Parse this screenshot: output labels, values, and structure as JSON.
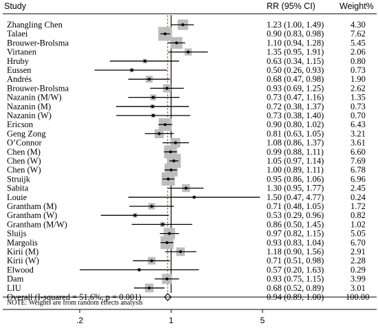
{
  "headers": {
    "study": "Study",
    "rr": "RR (95% CI)",
    "weight": "Weight%"
  },
  "chart_data": {
    "type": "forest",
    "x_scale": "log",
    "x_ticks": [
      {
        "value": 0.2,
        "label": ".2"
      },
      {
        "value": 1,
        "label": "1"
      },
      {
        "value": 5,
        "label": "5"
      }
    ],
    "overall_line_x": 0.94,
    "null_line_x": 1,
    "studies": [
      {
        "name": "Zhangling Chen",
        "rr": 1.23,
        "lo": 1.0,
        "hi": 1.49,
        "ci_text": "1.23 (1.00, 1.49)",
        "weight": "4.30"
      },
      {
        "name": "Talaei",
        "rr": 0.9,
        "lo": 0.83,
        "hi": 0.98,
        "ci_text": "0.90 (0.83, 0.98)",
        "weight": "7.62"
      },
      {
        "name": "Brouwer-Brolsma",
        "rr": 1.1,
        "lo": 0.94,
        "hi": 1.28,
        "ci_text": "1.10 (0.94, 1.28)",
        "weight": "5.45"
      },
      {
        "name": "Virtanen",
        "rr": 1.35,
        "lo": 0.95,
        "hi": 1.91,
        "ci_text": "1.35 (0.95, 1.91)",
        "weight": "2.06"
      },
      {
        "name": "Hruby",
        "rr": 0.63,
        "lo": 0.34,
        "hi": 1.15,
        "ci_text": "0.63 (0.34, 1.15)",
        "weight": "0.80"
      },
      {
        "name": "Eussen",
        "rr": 0.5,
        "lo": 0.26,
        "hi": 0.93,
        "ci_text": "0.50 (0.26, 0.93)",
        "weight": "0.73"
      },
      {
        "name": "Andrés",
        "rr": 0.68,
        "lo": 0.47,
        "hi": 0.98,
        "ci_text": "0.68 (0.47, 0.98)",
        "weight": "1.90"
      },
      {
        "name": "Brouwer-Brolsma",
        "rr": 0.93,
        "lo": 0.69,
        "hi": 1.25,
        "ci_text": "0.93 (0.69, 1.25)",
        "weight": "2.62"
      },
      {
        "name": "Nazanin (M/W)",
        "rr": 0.73,
        "lo": 0.47,
        "hi": 1.16,
        "ci_text": "0.73 (0.47, 1.16)",
        "weight": "1.35"
      },
      {
        "name": "Nazanin (M)",
        "rr": 0.72,
        "lo": 0.38,
        "hi": 1.37,
        "ci_text": "0.72 (0.38, 1.37)",
        "weight": "0.73"
      },
      {
        "name": "Nazanin (W)",
        "rr": 0.73,
        "lo": 0.38,
        "hi": 1.4,
        "ci_text": "0.73 (0.38, 1.40)",
        "weight": "0.70"
      },
      {
        "name": "Ericson",
        "rr": 0.9,
        "lo": 0.8,
        "hi": 1.02,
        "ci_text": "0.90 (0.80, 1.02)",
        "weight": "6.43"
      },
      {
        "name": "Geng Zong",
        "rr": 0.81,
        "lo": 0.63,
        "hi": 1.05,
        "ci_text": "0.81 (0.63, 1.05)",
        "weight": "3.21"
      },
      {
        "name": "O’Connor",
        "rr": 1.08,
        "lo": 0.86,
        "hi": 1.37,
        "ci_text": "1.08 (0.86, 1.37)",
        "weight": "3.61"
      },
      {
        "name": "Chen (M)",
        "rr": 0.99,
        "lo": 0.88,
        "hi": 1.11,
        "ci_text": "0.99 (0.88, 1.11)",
        "weight": "6.60"
      },
      {
        "name": "Chen (W)",
        "rr": 1.05,
        "lo": 0.97,
        "hi": 1.14,
        "ci_text": "1.05 (0.97, 1.14)",
        "weight": "7.69"
      },
      {
        "name": "Chen (W)",
        "rr": 1.0,
        "lo": 0.89,
        "hi": 1.11,
        "ci_text": "1.00 (0.89, 1.11)",
        "weight": "6.78"
      },
      {
        "name": "Struijk",
        "rr": 0.95,
        "lo": 0.86,
        "hi": 1.06,
        "ci_text": "0.95 (0.86, 1.06)",
        "weight": "6.96"
      },
      {
        "name": "Sabita",
        "rr": 1.3,
        "lo": 0.95,
        "hi": 1.77,
        "ci_text": "1.30 (0.95, 1.77)",
        "weight": "2.45"
      },
      {
        "name": "Louie",
        "rr": 1.5,
        "lo": 0.47,
        "hi": 4.77,
        "ci_text": "1.50 (0.47, 4.77)",
        "weight": "0.24"
      },
      {
        "name": "Grantham (M)",
        "rr": 0.71,
        "lo": 0.48,
        "hi": 1.05,
        "ci_text": "0.71 (0.48, 1.05)",
        "weight": "1.72"
      },
      {
        "name": "Grantham (W)",
        "rr": 0.53,
        "lo": 0.29,
        "hi": 0.96,
        "ci_text": "0.53 (0.29, 0.96)",
        "weight": "0.82"
      },
      {
        "name": "Grantham (M/W)",
        "rr": 0.86,
        "lo": 0.5,
        "hi": 1.45,
        "ci_text": "0.86 (0.50, 1.45)",
        "weight": "1.02"
      },
      {
        "name": "Sluijs",
        "rr": 0.97,
        "lo": 0.82,
        "hi": 1.15,
        "ci_text": "0.97 (0.82, 1.15)",
        "weight": "5.05"
      },
      {
        "name": "Margolis",
        "rr": 0.93,
        "lo": 0.83,
        "hi": 1.04,
        "ci_text": "0.93 (0.83, 1.04)",
        "weight": "6.70"
      },
      {
        "name": "Kirii (M)",
        "rr": 1.18,
        "lo": 0.9,
        "hi": 1.56,
        "ci_text": "1.18 (0.90, 1.56)",
        "weight": "2.91"
      },
      {
        "name": "Kirii (W)",
        "rr": 0.71,
        "lo": 0.51,
        "hi": 0.98,
        "ci_text": "0.71 (0.51, 0.98)",
        "weight": "2.28"
      },
      {
        "name": "Elwood",
        "rr": 0.57,
        "lo": 0.2,
        "hi": 1.63,
        "ci_text": "0.57 (0.20, 1.63)",
        "weight": "0.29"
      },
      {
        "name": "Dam",
        "rr": 0.93,
        "lo": 0.75,
        "hi": 1.15,
        "ci_text": "0.93 (0.75, 1.15)",
        "weight": "3.99"
      },
      {
        "name": "LIU",
        "rr": 0.68,
        "lo": 0.52,
        "hi": 0.89,
        "ci_text": "0.68 (0.52, 0.89)",
        "weight": "3.01"
      }
    ],
    "overall": {
      "label": "Overall  (I-squared = 51.6%, p = 0.001)",
      "rr": 0.94,
      "lo": 0.89,
      "hi": 1.0,
      "ci_text": "0.94 (0.89, 1.00)",
      "weight": "100.00"
    },
    "note": "NOTE: Weights are from random effects analysis"
  }
}
